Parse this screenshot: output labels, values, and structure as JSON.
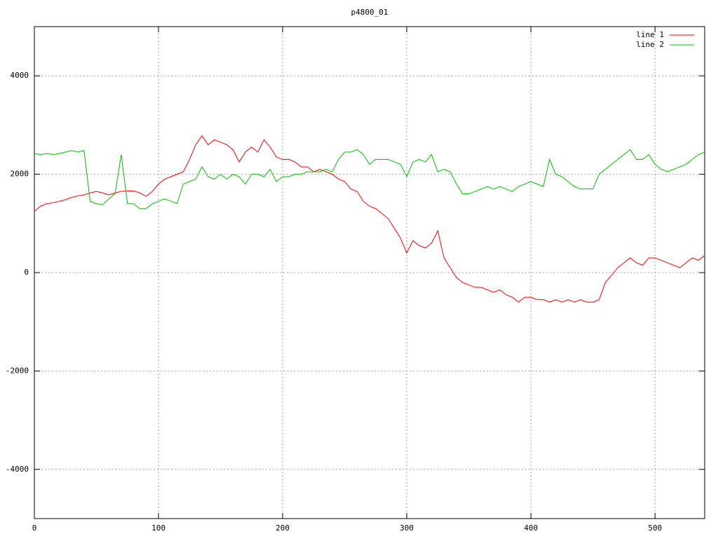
{
  "chart_data": {
    "type": "line",
    "title": "p4800_01",
    "x": [
      0,
      5,
      10,
      15,
      20,
      25,
      30,
      35,
      40,
      45,
      50,
      55,
      60,
      65,
      70,
      75,
      80,
      85,
      90,
      95,
      100,
      105,
      110,
      115,
      120,
      125,
      130,
      135,
      140,
      145,
      150,
      155,
      160,
      165,
      170,
      175,
      180,
      185,
      190,
      195,
      200,
      205,
      210,
      215,
      220,
      225,
      230,
      235,
      240,
      245,
      250,
      255,
      260,
      265,
      270,
      275,
      280,
      285,
      290,
      295,
      300,
      305,
      310,
      315,
      320,
      325,
      330,
      335,
      340,
      345,
      350,
      355,
      360,
      365,
      370,
      375,
      380,
      385,
      390,
      395,
      400,
      405,
      410,
      415,
      420,
      425,
      430,
      435,
      440,
      445,
      450,
      455,
      460,
      465,
      470,
      475,
      480,
      485,
      490,
      495,
      500,
      505,
      510,
      515,
      520,
      525,
      530,
      535,
      540
    ],
    "series": [
      {
        "name": "line 1",
        "color": "#ff0000",
        "values": [
          1250,
          1350,
          1400,
          1420,
          1450,
          1480,
          1530,
          1560,
          1580,
          1620,
          1650,
          1620,
          1580,
          1620,
          1650,
          1660,
          1660,
          1620,
          1550,
          1650,
          1800,
          1900,
          1950,
          2000,
          2050,
          2300,
          2600,
          2780,
          2600,
          2700,
          2650,
          2600,
          2500,
          2250,
          2450,
          2550,
          2450,
          2700,
          2550,
          2350,
          2300,
          2300,
          2250,
          2150,
          2150,
          2050,
          2100,
          2050,
          2000,
          1900,
          1850,
          1700,
          1650,
          1450,
          1350,
          1300,
          1200,
          1100,
          900,
          700,
          400,
          650,
          550,
          500,
          600,
          850,
          300,
          100,
          -100,
          -200,
          -250,
          -300,
          -300,
          -350,
          -400,
          -350,
          -450,
          -500,
          -600,
          -500,
          -500,
          -550,
          -550,
          -600,
          -550,
          -600,
          -550,
          -600,
          -550,
          -600,
          -600,
          -550,
          -200,
          -50,
          100,
          200,
          300,
          200,
          150,
          300,
          300,
          250,
          200,
          150,
          100,
          200,
          300,
          250,
          350
        ]
      },
      {
        "name": "line 2",
        "color": "#00c000",
        "values": [
          2420,
          2400,
          2420,
          2400,
          2420,
          2450,
          2480,
          2450,
          2480,
          1450,
          1400,
          1380,
          1500,
          1600,
          2400,
          1400,
          1400,
          1300,
          1300,
          1400,
          1450,
          1500,
          1450,
          1400,
          1800,
          1850,
          1900,
          2150,
          1950,
          1900,
          2000,
          1900,
          2000,
          1950,
          1800,
          2000,
          2000,
          1950,
          2100,
          1850,
          1950,
          1950,
          2000,
          2000,
          2050,
          2050,
          2050,
          2100,
          2050,
          2300,
          2450,
          2450,
          2500,
          2400,
          2200,
          2300,
          2300,
          2300,
          2250,
          2200,
          1950,
          2250,
          2300,
          2250,
          2400,
          2050,
          2100,
          2050,
          1800,
          1600,
          1600,
          1650,
          1700,
          1750,
          1700,
          1750,
          1700,
          1650,
          1750,
          1800,
          1850,
          1800,
          1750,
          2300,
          2000,
          1950,
          1850,
          1750,
          1700,
          1700,
          1700,
          2000,
          2100,
          2200,
          2300,
          2400,
          2500,
          2300,
          2300,
          2400,
          2200,
          2100,
          2050,
          2100,
          2150,
          2200,
          2300,
          2400,
          2450
        ]
      }
    ],
    "xlim": [
      0,
      540
    ],
    "xticks": [
      0,
      100,
      200,
      300,
      400,
      500
    ],
    "ylim": [
      -5000,
      5000
    ],
    "yticks": [
      -4000,
      -2000,
      0,
      2000,
      4000
    ],
    "grid": true,
    "legend": "top-right"
  }
}
